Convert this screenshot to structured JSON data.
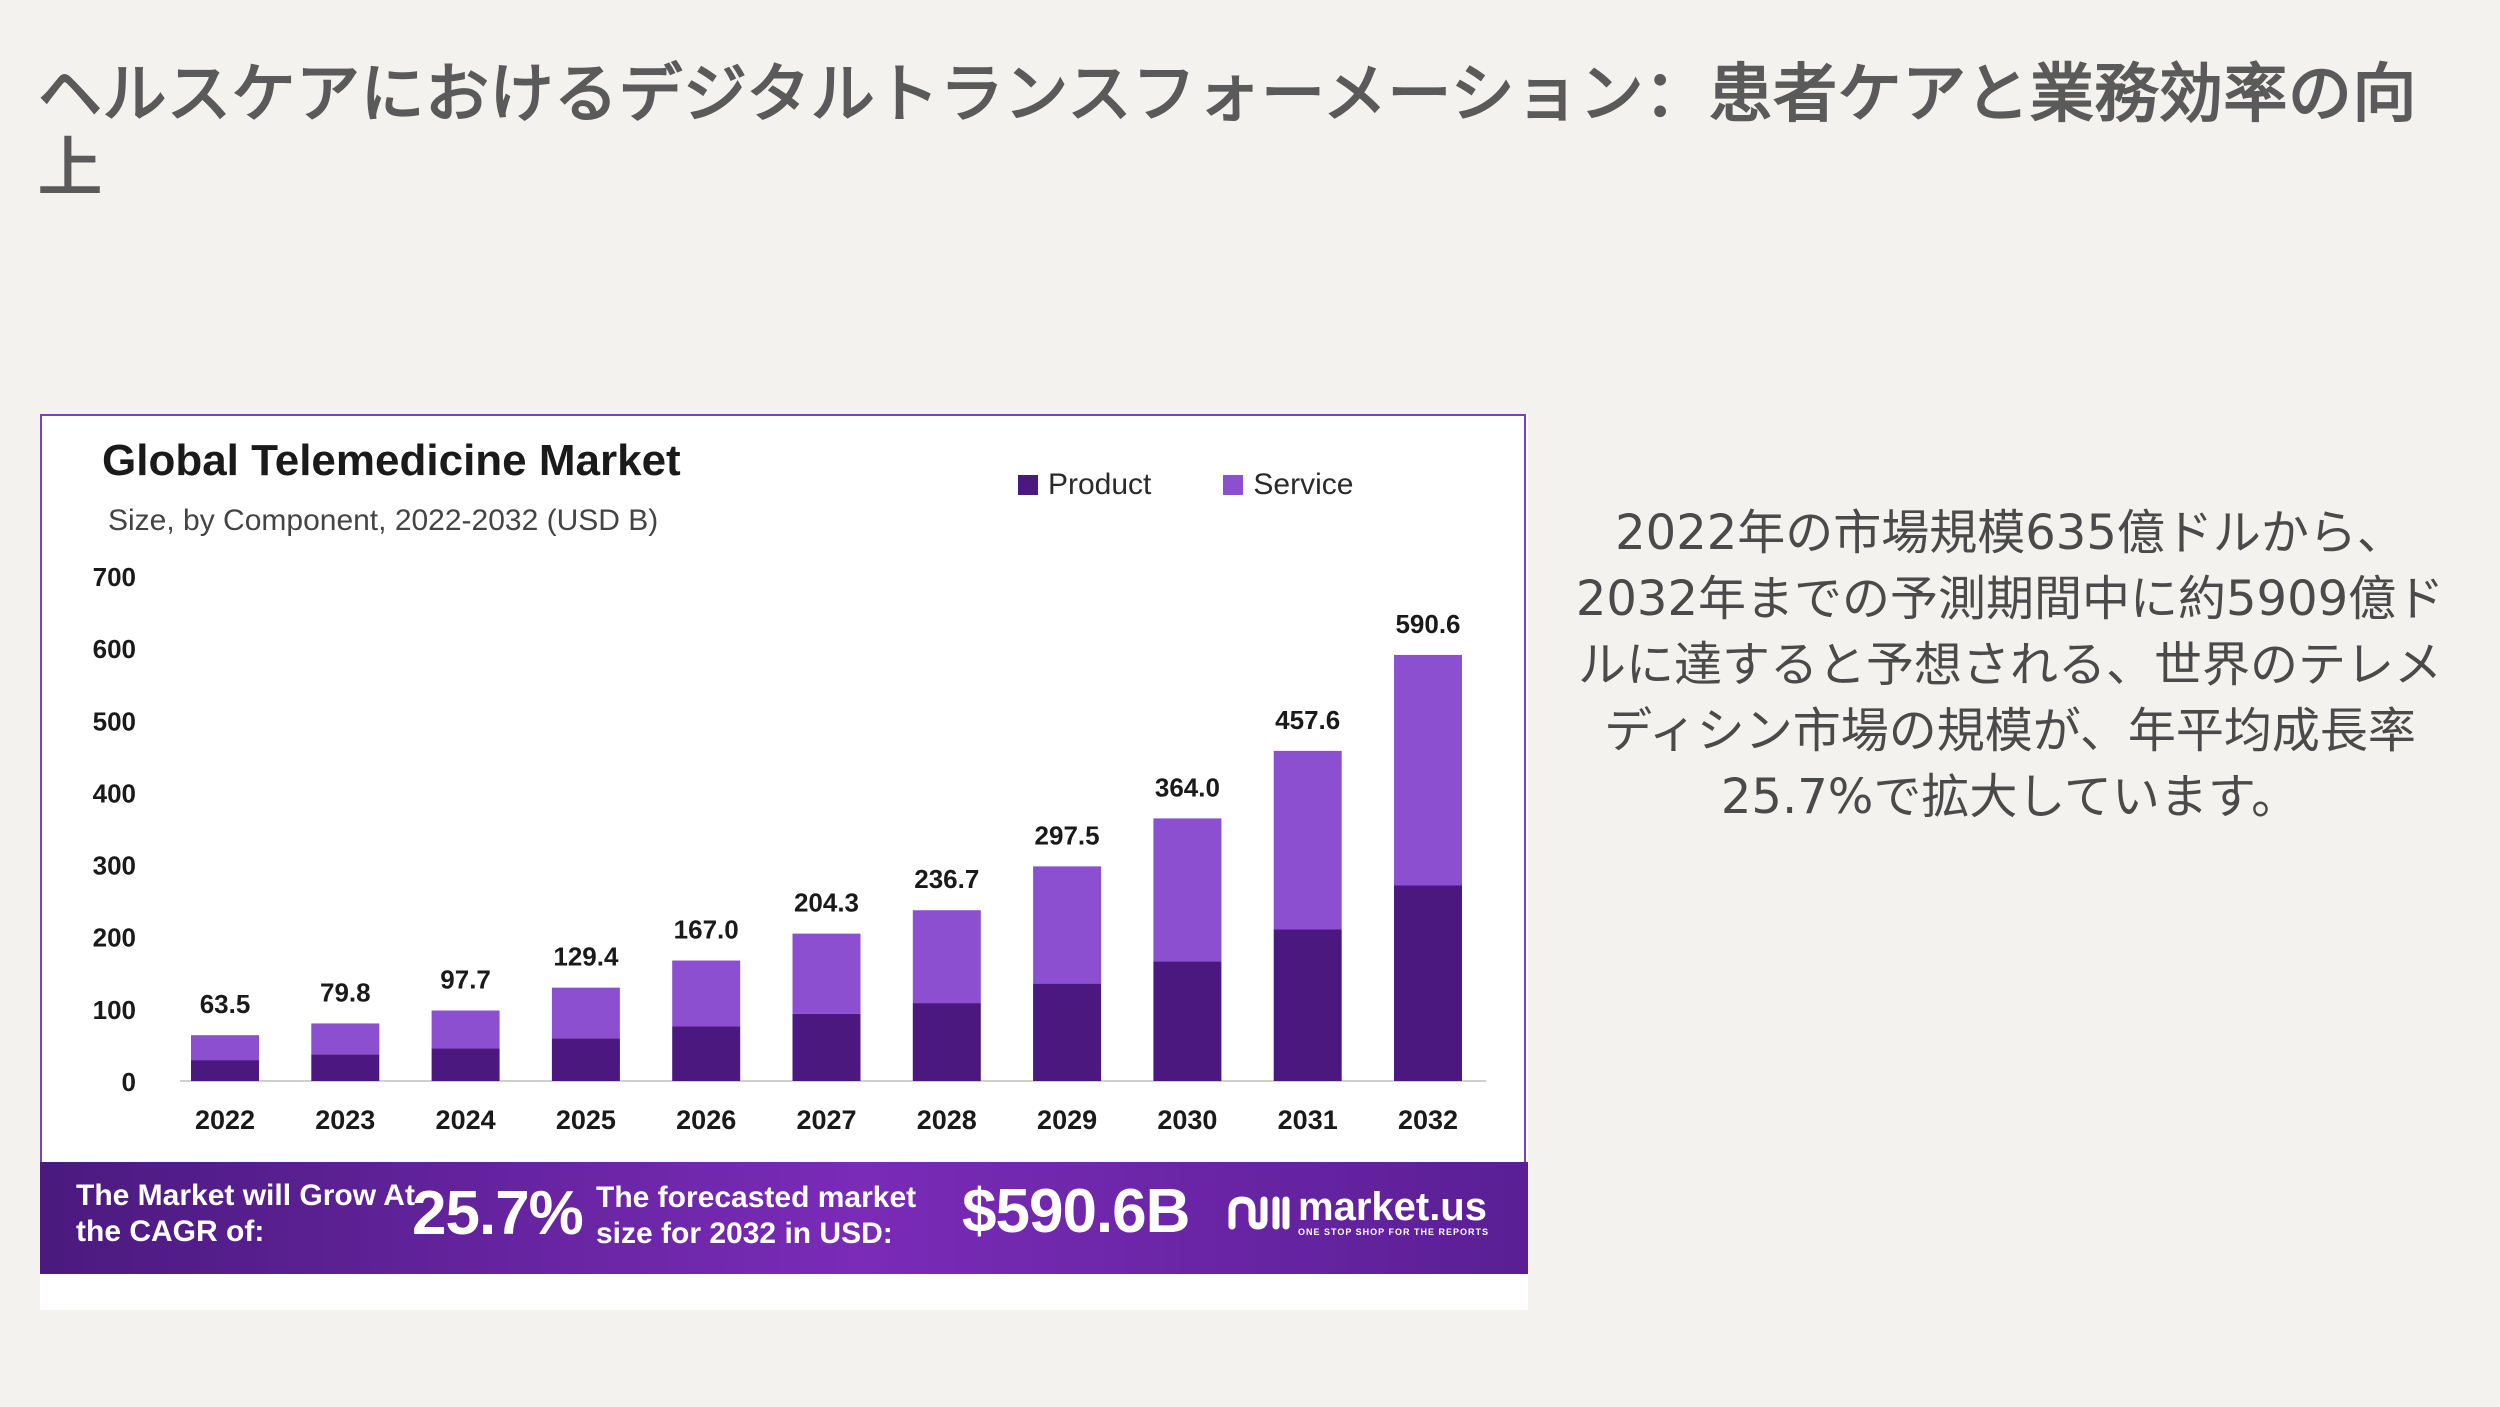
{
  "slide": {
    "title": "ヘルスケアにおけるデジタルトランスフォーメーション：患者ケアと業務効率の向上",
    "description": "2022年の市場規模635億ドルから、2032年までの予測期間中に約5909億ドルに達すると予想される、世界のテレメディシン市場の規模が、年平均成長率25.7%で拡大しています。"
  },
  "chart_data": {
    "type": "bar",
    "stacked": true,
    "title": "Global Telemedicine Market",
    "subtitle": "Size, by Component, 2022-2032 (USD B)",
    "categories": [
      "2022",
      "2023",
      "2024",
      "2025",
      "2026",
      "2027",
      "2028",
      "2029",
      "2030",
      "2031",
      "2032"
    ],
    "series": [
      {
        "name": "Product",
        "color": "#4b1880",
        "values": [
          29,
          37,
          45,
          59,
          76,
          93,
          108,
          135,
          166,
          210,
          271
        ]
      },
      {
        "name": "Service",
        "color": "#8c4fd0",
        "values": [
          34.5,
          42.8,
          52.7,
          70.4,
          91.0,
          111.3,
          128.7,
          162.5,
          198.0,
          247.6,
          319.6
        ]
      }
    ],
    "totals": [
      "63.5",
      "79.8",
      "97.7",
      "129.4",
      "167.0",
      "204.3",
      "236.7",
      "297.5",
      "364.0",
      "457.6",
      "590.6"
    ],
    "yticks": [
      "0",
      "100",
      "200",
      "300",
      "400",
      "500",
      "600",
      "700"
    ],
    "ylim": [
      0,
      700
    ],
    "legend_position": "top-right",
    "grid": false
  },
  "banner": {
    "cagr_label": "The Market will Grow At the CAGR of:",
    "cagr_value": "25.7%",
    "forecast_label": "The forecasted market size for 2032 in USD:",
    "forecast_value": "$590.6B",
    "brand_name": "market.us",
    "brand_tagline": "ONE STOP SHOP FOR THE REPORTS"
  }
}
